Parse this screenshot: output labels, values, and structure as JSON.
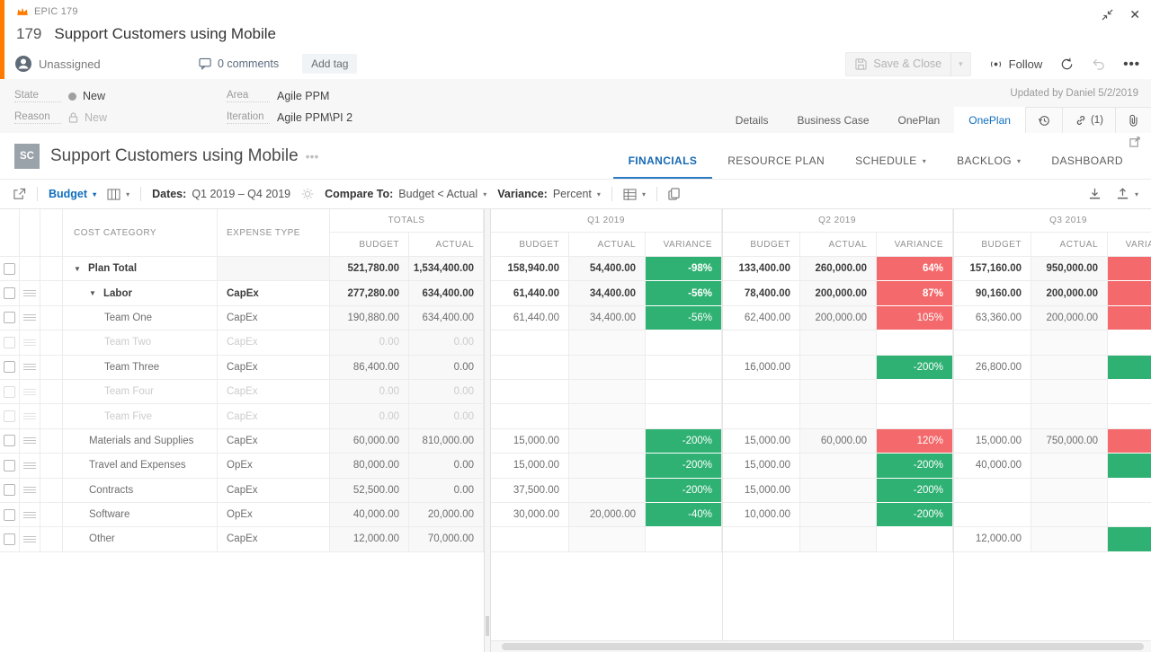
{
  "workitem": {
    "type_label": "EPIC 179",
    "id": "179",
    "title": "Support Customers using Mobile",
    "assignee": "Unassigned",
    "comments": "0 comments",
    "add_tag": "Add tag",
    "save_close": "Save & Close",
    "follow": "Follow",
    "more": "•••"
  },
  "fields": {
    "state_label": "State",
    "state_value": "New",
    "reason_label": "Reason",
    "reason_value": "New",
    "area_label": "Area",
    "area_value": "Agile PPM",
    "iteration_label": "Iteration",
    "iteration_value": "Agile PPM\\PI 2",
    "updated": "Updated by Daniel 5/2/2019",
    "link_count": "(1)"
  },
  "meta_tabs": [
    {
      "label": "Details",
      "active": false
    },
    {
      "label": "Business Case",
      "active": false
    },
    {
      "label": "OnePlan",
      "active": false
    },
    {
      "label": "OnePlan",
      "active": true
    }
  ],
  "oneplan": {
    "avatar": "SC",
    "title": "Support Customers using Mobile",
    "title_dots": "•••",
    "tabs": [
      {
        "label": "FINANCIALS",
        "active": true,
        "caret": false
      },
      {
        "label": "RESOURCE PLAN",
        "active": false,
        "caret": false
      },
      {
        "label": "SCHEDULE",
        "active": false,
        "caret": true
      },
      {
        "label": "BACKLOG",
        "active": false,
        "caret": true
      },
      {
        "label": "DASHBOARD",
        "active": false,
        "caret": false
      }
    ]
  },
  "toolbar": {
    "view": "Budget",
    "dates_label": "Dates:",
    "dates_value": "Q1 2019 – Q4 2019",
    "compare_label": "Compare To:",
    "compare_value": "Budget < Actual",
    "variance_label": "Variance:",
    "variance_value": "Percent"
  },
  "colors": {
    "green": "#2fb173",
    "red": "#f4696b",
    "accent_blue": "#106ebe",
    "epic_orange": "#ff7b00"
  },
  "grid": {
    "headers": {
      "cost_category": "COST CATEGORY",
      "expense_type": "EXPENSE TYPE",
      "totals": "TOTALS",
      "budget": "BUDGET",
      "actual": "ACTUAL",
      "variance": "VARIANCE"
    },
    "quarters": [
      "Q1 2019",
      "Q2 2019",
      "Q3 2019"
    ],
    "rows": [
      {
        "cat": "Plan Total",
        "et": "",
        "level": 0,
        "bold": true,
        "exp": true,
        "drag": false,
        "dim": false,
        "tb": "521,780.00",
        "ta": "1,534,400.00",
        "q": [
          [
            "158,940.00",
            "54,400.00",
            "-98%",
            "g"
          ],
          [
            "133,400.00",
            "260,000.00",
            "64%",
            "r"
          ],
          [
            "157,160.00",
            "950,000.00",
            "",
            "r"
          ]
        ]
      },
      {
        "cat": "Labor",
        "et": "CapEx",
        "level": 1,
        "bold": true,
        "exp": true,
        "drag": true,
        "dim": false,
        "tb": "277,280.00",
        "ta": "634,400.00",
        "q": [
          [
            "61,440.00",
            "34,400.00",
            "-56%",
            "g"
          ],
          [
            "78,400.00",
            "200,000.00",
            "87%",
            "r"
          ],
          [
            "90,160.00",
            "200,000.00",
            "",
            "r"
          ]
        ]
      },
      {
        "cat": "Team One",
        "et": "CapEx",
        "level": 2,
        "bold": false,
        "exp": false,
        "drag": true,
        "dim": false,
        "tb": "190,880.00",
        "ta": "634,400.00",
        "q": [
          [
            "61,440.00",
            "34,400.00",
            "-56%",
            "g"
          ],
          [
            "62,400.00",
            "200,000.00",
            "105%",
            "r"
          ],
          [
            "63,360.00",
            "200,000.00",
            "",
            "r"
          ]
        ]
      },
      {
        "cat": "Team Two",
        "et": "CapEx",
        "level": 2,
        "bold": false,
        "exp": false,
        "drag": true,
        "dim": true,
        "tb": "0.00",
        "ta": "0.00",
        "q": [
          [
            "",
            "",
            "",
            ""
          ],
          [
            "",
            "",
            "",
            ""
          ],
          [
            "",
            "",
            "",
            ""
          ]
        ]
      },
      {
        "cat": "Team Three",
        "et": "CapEx",
        "level": 2,
        "bold": false,
        "exp": false,
        "drag": true,
        "dim": false,
        "tb": "86,400.00",
        "ta": "0.00",
        "q": [
          [
            "",
            "",
            "",
            ""
          ],
          [
            "16,000.00",
            "",
            "-200%",
            "g"
          ],
          [
            "26,800.00",
            "",
            "",
            "g"
          ]
        ]
      },
      {
        "cat": "Team Four",
        "et": "CapEx",
        "level": 2,
        "bold": false,
        "exp": false,
        "drag": true,
        "dim": true,
        "tb": "0.00",
        "ta": "0.00",
        "q": [
          [
            "",
            "",
            "",
            ""
          ],
          [
            "",
            "",
            "",
            ""
          ],
          [
            "",
            "",
            "",
            ""
          ]
        ]
      },
      {
        "cat": "Team Five",
        "et": "CapEx",
        "level": 2,
        "bold": false,
        "exp": false,
        "drag": true,
        "dim": true,
        "tb": "0.00",
        "ta": "0.00",
        "q": [
          [
            "",
            "",
            "",
            ""
          ],
          [
            "",
            "",
            "",
            ""
          ],
          [
            "",
            "",
            "",
            ""
          ]
        ]
      },
      {
        "cat": "Materials and Supplies",
        "et": "CapEx",
        "level": 1,
        "bold": false,
        "exp": false,
        "drag": true,
        "dim": false,
        "tb": "60,000.00",
        "ta": "810,000.00",
        "q": [
          [
            "15,000.00",
            "",
            "-200%",
            "g"
          ],
          [
            "15,000.00",
            "60,000.00",
            "120%",
            "r"
          ],
          [
            "15,000.00",
            "750,000.00",
            "",
            "r"
          ]
        ]
      },
      {
        "cat": "Travel and Expenses",
        "et": "OpEx",
        "level": 1,
        "bold": false,
        "exp": false,
        "drag": true,
        "dim": false,
        "tb": "80,000.00",
        "ta": "0.00",
        "q": [
          [
            "15,000.00",
            "",
            "-200%",
            "g"
          ],
          [
            "15,000.00",
            "",
            "-200%",
            "g"
          ],
          [
            "40,000.00",
            "",
            "",
            "g"
          ]
        ]
      },
      {
        "cat": "Contracts",
        "et": "CapEx",
        "level": 1,
        "bold": false,
        "exp": false,
        "drag": true,
        "dim": false,
        "tb": "52,500.00",
        "ta": "0.00",
        "q": [
          [
            "37,500.00",
            "",
            "-200%",
            "g"
          ],
          [
            "15,000.00",
            "",
            "-200%",
            "g"
          ],
          [
            "",
            "",
            "",
            ""
          ]
        ]
      },
      {
        "cat": "Software",
        "et": "OpEx",
        "level": 1,
        "bold": false,
        "exp": false,
        "drag": true,
        "dim": false,
        "tb": "40,000.00",
        "ta": "20,000.00",
        "q": [
          [
            "30,000.00",
            "20,000.00",
            "-40%",
            "g"
          ],
          [
            "10,000.00",
            "",
            "-200%",
            "g"
          ],
          [
            "",
            "",
            "",
            ""
          ]
        ]
      },
      {
        "cat": "Other",
        "et": "CapEx",
        "level": 1,
        "bold": false,
        "exp": false,
        "drag": true,
        "dim": false,
        "tb": "12,000.00",
        "ta": "70,000.00",
        "q": [
          [
            "",
            "",
            "",
            ""
          ],
          [
            "",
            "",
            "",
            ""
          ],
          [
            "12,000.00",
            "",
            "",
            "g"
          ]
        ]
      }
    ]
  }
}
